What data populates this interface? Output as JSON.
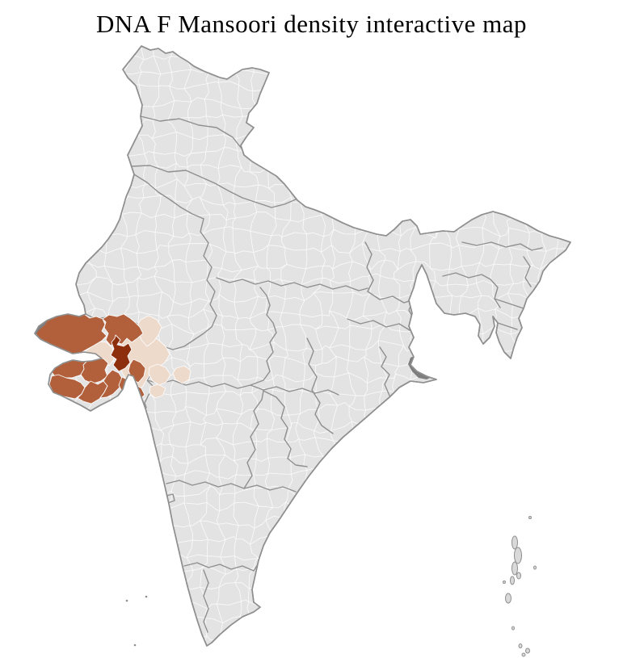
{
  "title": "DNA F Mansoori density interactive map",
  "palette": {
    "background": "#ffffff",
    "base_district_fill": "#e3e3e3",
    "district_border": "#fbfbfb",
    "state_border": "#8f8f8f",
    "country_outline": "#8f8f8f",
    "density_high": "#8d2f0d",
    "density_mid": "#b2603c",
    "density_low": "#eedacb",
    "neutral_dark_area": "#7e7e7e",
    "island_fill": "#d9d9d9",
    "island_stroke": "#8f8f8f"
  },
  "map": {
    "country": "india-districts",
    "shaded_regions": [
      {
        "id": "east-gujarat",
        "level": "low"
      },
      {
        "id": "surendranagar",
        "level": "low"
      },
      {
        "id": "south-rajasthan",
        "level": "low"
      },
      {
        "id": "jhabua",
        "level": "low"
      },
      {
        "id": "west-madhya-pradesh",
        "level": "low"
      },
      {
        "id": "nandurbar",
        "level": "low"
      },
      {
        "id": "south-gujarat",
        "level": "low"
      },
      {
        "id": "kutch",
        "level": "mid"
      },
      {
        "id": "north-gujarat",
        "level": "mid"
      },
      {
        "id": "jamnagar",
        "level": "mid"
      },
      {
        "id": "rajkot",
        "level": "mid"
      },
      {
        "id": "junagadh",
        "level": "mid"
      },
      {
        "id": "amreli",
        "level": "mid"
      },
      {
        "id": "bhavnagar",
        "level": "mid"
      },
      {
        "id": "vadodara",
        "level": "mid"
      },
      {
        "id": "bharuch-surat",
        "level": "mid"
      },
      {
        "id": "ahmedabad",
        "level": "high"
      }
    ],
    "neutral_patches": [
      {
        "id": "sundarbans"
      },
      {
        "id": "kutch-creek"
      }
    ],
    "island_groups": [
      {
        "id": "andaman-nicobar"
      },
      {
        "id": "lakshadweep"
      }
    ]
  }
}
